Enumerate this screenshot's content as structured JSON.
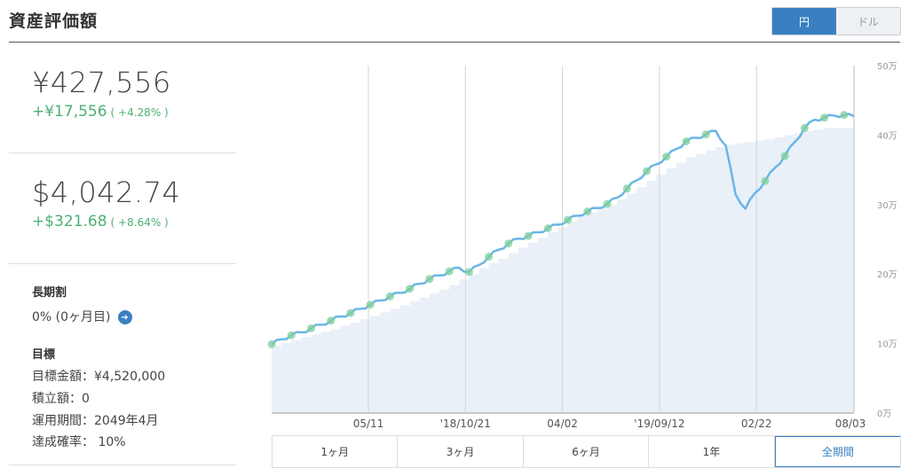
{
  "header": {
    "title": "資産評価額"
  },
  "currency_toggle": {
    "yen_label": "円",
    "dollar_label": "ドル",
    "selected": "円",
    "accent": "#3a7fc1"
  },
  "summary": {
    "jpy_total": "¥427,556",
    "jpy_change": "+¥17,556",
    "jpy_change_pct": "( +4.28% )",
    "usd_total": "$4,042.74",
    "usd_change": "+$321.68",
    "usd_change_pct": "( +8.64% )",
    "positive_color": "#4caf73"
  },
  "long_term_discount": {
    "label": "長期割",
    "value": "0% (0ヶ月目)"
  },
  "goal": {
    "label": "目標",
    "target_amount": "目標金額：¥4,520,000",
    "reserve_amount": "積立額：0",
    "period": "運用期間：2049年4月",
    "probability": "達成確率： 10%"
  },
  "range_buttons": [
    "1ヶ月",
    "3ヶ月",
    "6ヶ月",
    "1年",
    "全期間"
  ],
  "range_selected": "全期間",
  "chart_data": {
    "type": "area",
    "xlabels": [
      "05/11",
      "'18/10/21",
      "04/02",
      "'19/09/12",
      "02/22",
      "08/03"
    ],
    "ylabels": [
      "0万",
      "10万",
      "20万",
      "30万",
      "40万",
      "50万"
    ],
    "ylim": [
      0,
      50
    ],
    "grid": "vertical",
    "line_color": "#6bb5e6",
    "fill_color": "#e9f0f8",
    "series": [
      {
        "values": [
          9.9,
          10.6,
          11.2,
          11.6,
          12.2,
          12.7,
          13.3,
          13.9,
          14.4,
          15.0,
          15.6,
          16.2,
          16.8,
          17.3,
          17.9,
          18.6,
          19.3,
          19.8,
          20.4,
          20.9,
          20.3,
          21.3,
          22.5,
          23.5,
          24.4,
          25.1,
          25.5,
          26.0,
          26.6,
          27.1,
          27.8,
          28.4,
          29.0,
          29.5,
          30.1,
          31.0,
          32.3,
          33.5,
          34.8,
          35.8,
          36.9,
          38.0,
          39.1,
          39.6,
          40.1,
          40.6,
          38.5,
          31.5,
          29.4,
          31.7,
          33.4,
          35.3,
          37.0,
          39.0,
          41.0,
          42.2,
          42.5,
          42.8,
          42.9,
          42.7
        ]
      },
      {
        "values": [
          9.7,
          10.1,
          10.5,
          10.9,
          11.3,
          11.7,
          12.1,
          12.6,
          13.0,
          13.5,
          14.0,
          14.5,
          15.0,
          15.5,
          16.1,
          16.6,
          17.2,
          17.8,
          18.4,
          19.2,
          20.0,
          20.8,
          21.6,
          22.2,
          23.0,
          23.8,
          24.5,
          25.2,
          26.0,
          26.8,
          27.6,
          28.3,
          28.9,
          29.4,
          30.0,
          30.8,
          31.6,
          32.5,
          33.4,
          34.3,
          35.2,
          36.0,
          36.8,
          37.3,
          37.8,
          38.3,
          38.6,
          38.8,
          39.0,
          39.2,
          39.4,
          39.7,
          40.0,
          40.3,
          40.6,
          40.8,
          41.0,
          41.0,
          41.0,
          41.0
        ]
      }
    ]
  }
}
